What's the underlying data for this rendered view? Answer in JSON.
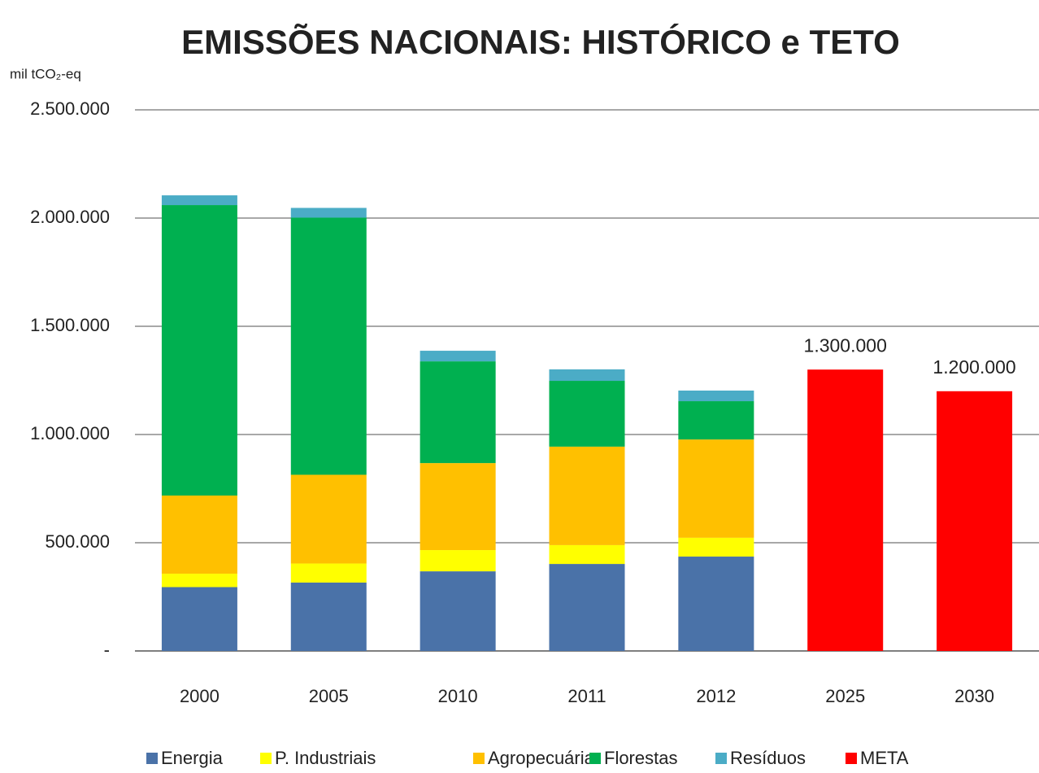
{
  "chart_data": {
    "type": "stacked_bar",
    "title": "EMISSÕES NACIONAIS: HISTÓRICO e TETO",
    "y_axis_label": "mil tCO₂-eq",
    "categories": [
      "2000",
      "2005",
      "2010",
      "2011",
      "2012",
      "2025",
      "2030"
    ],
    "series": [
      {
        "name": "Energia",
        "color": "#4a72a8",
        "values": [
          295000,
          316000,
          368000,
          402000,
          436000,
          null,
          null
        ]
      },
      {
        "name": "P. Industriais",
        "color": "#ffff00",
        "values": [
          62000,
          88000,
          98000,
          87000,
          87000,
          null,
          null
        ]
      },
      {
        "name": "Agropecuária",
        "color": "#ffc000",
        "values": [
          361000,
          410000,
          402000,
          455000,
          454000,
          null,
          null
        ]
      },
      {
        "name": "Florestas",
        "color": "#00b050",
        "values": [
          1342000,
          1188000,
          470000,
          304000,
          177000,
          null,
          null
        ]
      },
      {
        "name": "Resíduos",
        "color": "#4bacc6",
        "values": [
          45000,
          45000,
          49000,
          53000,
          49000,
          null,
          null
        ]
      },
      {
        "name": "META",
        "color": "#ff0000",
        "values": [
          null,
          null,
          null,
          null,
          null,
          1300000,
          1200000
        ],
        "value_labels": [
          null,
          null,
          null,
          null,
          null,
          "1.300.000",
          "1.200.000"
        ]
      }
    ],
    "ylim": [
      0,
      2500000
    ],
    "yticks": [
      {
        "value": 0,
        "label": "-"
      },
      {
        "value": 500000,
        "label": "500.000"
      },
      {
        "value": 1000000,
        "label": "1.000.000"
      },
      {
        "value": 1500000,
        "label": "1.500.000"
      },
      {
        "value": 2000000,
        "label": "2.000.000"
      },
      {
        "value": 2500000,
        "label": "2.500.000"
      }
    ],
    "grid": true,
    "legend": "bottom"
  }
}
